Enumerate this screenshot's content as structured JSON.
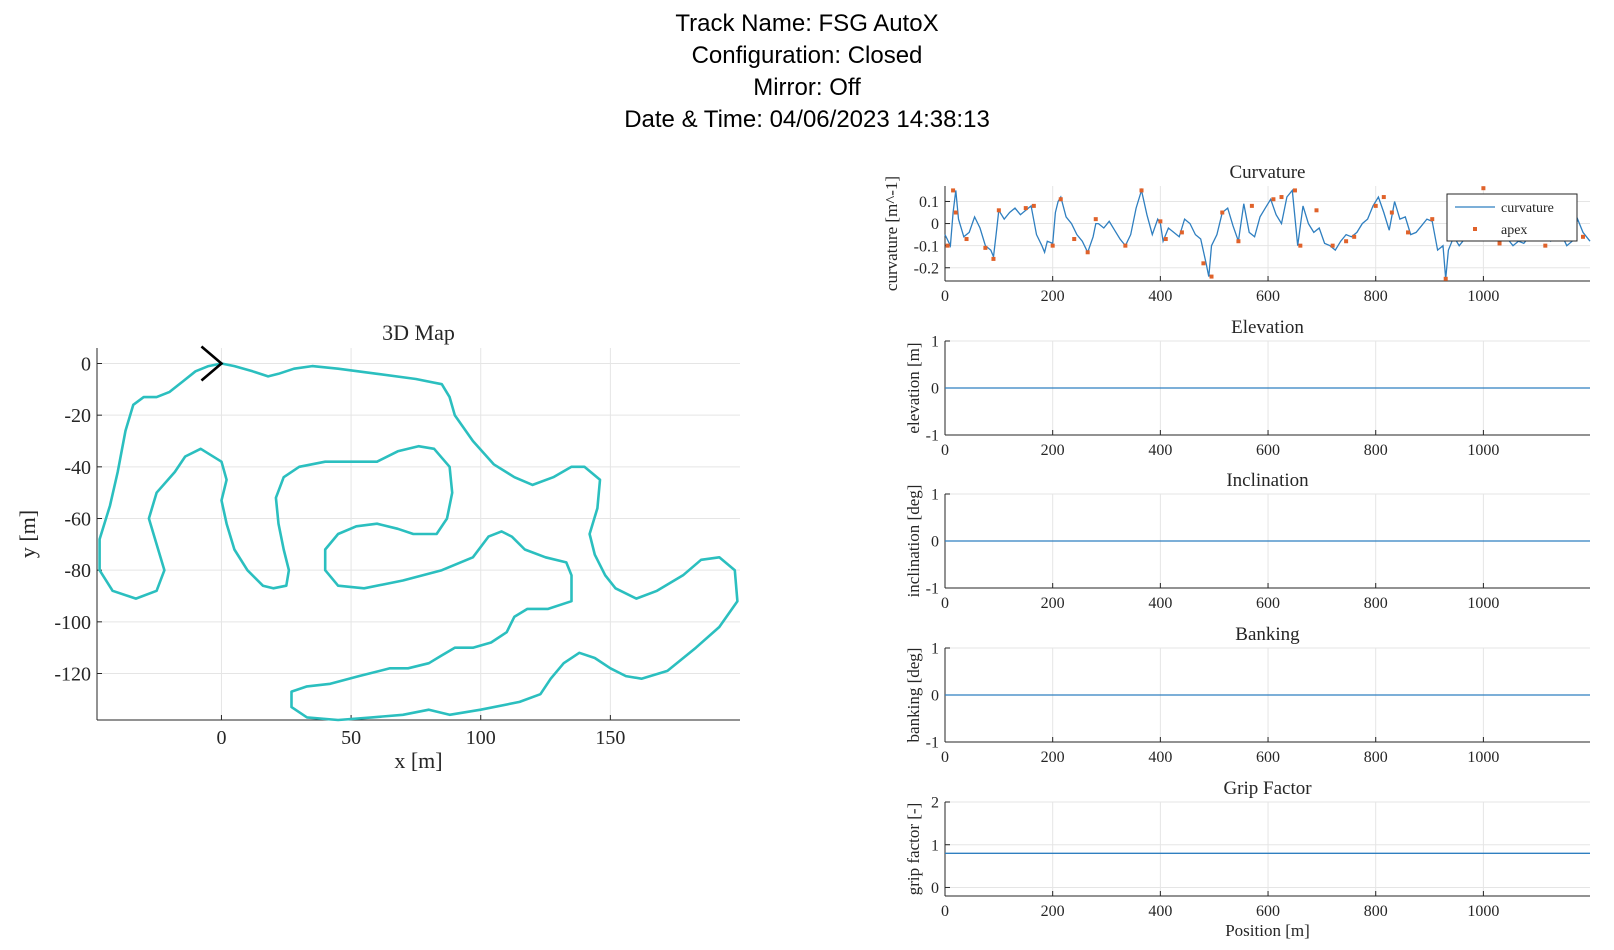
{
  "header": {
    "track_name": "Track Name: FSG AutoX",
    "configuration": "Configuration: Closed",
    "mirror": "Mirror: Off",
    "datetime": "Date & Time: 04/06/2023 14:38:13"
  },
  "colors": {
    "track": "#2bbfbf",
    "series": "#2f7fc0",
    "apex": "#e0622a",
    "start_marker": "#000000"
  },
  "chart_data": [
    {
      "type": "line",
      "title": "3D Map",
      "xlabel": "x [m]",
      "ylabel": "y [m]",
      "xlim": [
        -48,
        200
      ],
      "ylim": [
        -138,
        6
      ],
      "xticks": [
        0,
        50,
        100,
        150
      ],
      "yticks": [
        0,
        -20,
        -40,
        -60,
        -80,
        -100,
        -120
      ],
      "grid": true,
      "track_xy": [
        [
          0,
          0
        ],
        [
          5,
          -1
        ],
        [
          12,
          -3
        ],
        [
          18,
          -5
        ],
        [
          22,
          -4
        ],
        [
          28,
          -2
        ],
        [
          35,
          -1
        ],
        [
          45,
          -2
        ],
        [
          60,
          -4
        ],
        [
          75,
          -6
        ],
        [
          85,
          -8
        ],
        [
          88,
          -13
        ],
        [
          90,
          -20
        ],
        [
          97,
          -30
        ],
        [
          105,
          -39
        ],
        [
          113,
          -44
        ],
        [
          120,
          -47
        ],
        [
          128,
          -44
        ],
        [
          135,
          -40
        ],
        [
          140,
          -40
        ],
        [
          146,
          -45
        ],
        [
          145,
          -56
        ],
        [
          142,
          -66
        ],
        [
          144,
          -74
        ],
        [
          148,
          -82
        ],
        [
          152,
          -87
        ],
        [
          160,
          -91
        ],
        [
          168,
          -88
        ],
        [
          178,
          -82
        ],
        [
          185,
          -76
        ],
        [
          192,
          -75
        ],
        [
          198,
          -80
        ],
        [
          199,
          -92
        ],
        [
          192,
          -102
        ],
        [
          183,
          -110
        ],
        [
          172,
          -119
        ],
        [
          162,
          -122
        ],
        [
          156,
          -121
        ],
        [
          150,
          -118
        ],
        [
          144,
          -114
        ],
        [
          138,
          -112
        ],
        [
          132,
          -116
        ],
        [
          127,
          -122
        ],
        [
          123,
          -128
        ],
        [
          115,
          -131
        ],
        [
          100,
          -134
        ],
        [
          88,
          -136
        ],
        [
          80,
          -134
        ],
        [
          70,
          -136
        ],
        [
          58,
          -137
        ],
        [
          45,
          -138
        ],
        [
          33,
          -137
        ],
        [
          27,
          -133
        ],
        [
          27,
          -127
        ],
        [
          33,
          -125
        ],
        [
          42,
          -124
        ],
        [
          53,
          -121
        ],
        [
          65,
          -118
        ],
        [
          72,
          -118
        ],
        [
          80,
          -116
        ],
        [
          85,
          -113
        ],
        [
          90,
          -110
        ],
        [
          97,
          -110
        ],
        [
          104,
          -108
        ],
        [
          110,
          -104
        ],
        [
          113,
          -98
        ],
        [
          118,
          -95
        ],
        [
          126,
          -95
        ],
        [
          135,
          -92
        ],
        [
          135,
          -82
        ],
        [
          133,
          -77
        ],
        [
          125,
          -75
        ],
        [
          117,
          -72
        ],
        [
          112,
          -67
        ],
        [
          108,
          -65
        ],
        [
          103,
          -67
        ],
        [
          97,
          -75
        ],
        [
          85,
          -80
        ],
        [
          70,
          -84
        ],
        [
          55,
          -87
        ],
        [
          45,
          -86
        ],
        [
          40,
          -80
        ],
        [
          40,
          -72
        ],
        [
          45,
          -66
        ],
        [
          52,
          -63
        ],
        [
          60,
          -62
        ],
        [
          68,
          -64
        ],
        [
          74,
          -66
        ],
        [
          83,
          -66
        ],
        [
          87,
          -60
        ],
        [
          89,
          -50
        ],
        [
          88,
          -40
        ],
        [
          82,
          -33
        ],
        [
          76,
          -32
        ],
        [
          68,
          -34
        ],
        [
          60,
          -38
        ],
        [
          50,
          -38
        ],
        [
          40,
          -38
        ],
        [
          30,
          -40
        ],
        [
          24,
          -44
        ],
        [
          21,
          -52
        ],
        [
          22,
          -62
        ],
        [
          24,
          -72
        ],
        [
          26,
          -80
        ],
        [
          25,
          -86
        ],
        [
          20,
          -87
        ],
        [
          16,
          -86
        ],
        [
          10,
          -80
        ],
        [
          5,
          -72
        ],
        [
          2,
          -62
        ],
        [
          0,
          -53
        ],
        [
          2,
          -45
        ],
        [
          0,
          -38
        ],
        [
          -8,
          -33
        ],
        [
          -14,
          -36
        ],
        [
          -18,
          -42
        ],
        [
          -25,
          -50
        ],
        [
          -28,
          -60
        ],
        [
          -25,
          -70
        ],
        [
          -22,
          -80
        ],
        [
          -25,
          -88
        ],
        [
          -33,
          -91
        ],
        [
          -42,
          -88
        ],
        [
          -47,
          -80
        ],
        [
          -47,
          -68
        ],
        [
          -43,
          -55
        ],
        [
          -40,
          -42
        ],
        [
          -37,
          -26
        ],
        [
          -34,
          -16
        ],
        [
          -30,
          -13
        ],
        [
          -25,
          -13
        ],
        [
          -20,
          -11
        ],
        [
          -15,
          -7
        ],
        [
          -10,
          -3
        ],
        [
          -5,
          -1
        ],
        [
          0,
          0
        ]
      ],
      "start_marker": [
        0,
        0
      ]
    },
    {
      "type": "line",
      "title": "Curvature",
      "ylabel": "curvature [m^-1]",
      "xlim": [
        0,
        1198
      ],
      "ylim": [
        -0.26,
        0.17
      ],
      "xticks": [
        0,
        200,
        400,
        600,
        800,
        1000
      ],
      "yticks": [
        0.1,
        0,
        -0.1,
        -0.2
      ],
      "ytick_labels": [
        "0.1",
        "0",
        "-0.1",
        "-0.2"
      ],
      "legend": [
        "curvature",
        "apex"
      ],
      "legend_location": "top-right",
      "grid": true,
      "series": [
        {
          "name": "curvature",
          "x": [
            0,
            10,
            15,
            20,
            25,
            35,
            45,
            55,
            65,
            75,
            85,
            90,
            95,
            100,
            110,
            120,
            130,
            140,
            150,
            160,
            170,
            180,
            185,
            190,
            200,
            205,
            210,
            215,
            225,
            235,
            245,
            255,
            265,
            275,
            280,
            285,
            295,
            305,
            315,
            325,
            335,
            345,
            355,
            365,
            375,
            385,
            395,
            400,
            405,
            415,
            425,
            435,
            445,
            455,
            465,
            475,
            485,
            490,
            495,
            505,
            515,
            525,
            535,
            545,
            555,
            565,
            575,
            585,
            595,
            605,
            615,
            625,
            635,
            645,
            655,
            665,
            675,
            685,
            695,
            705,
            715,
            725,
            735,
            745,
            755,
            765,
            775,
            785,
            795,
            805,
            815,
            825,
            835,
            845,
            855,
            865,
            875,
            885,
            895,
            905,
            915,
            925,
            930,
            935,
            945,
            955,
            965,
            975,
            985,
            995,
            1005,
            1015,
            1025,
            1035,
            1045,
            1055,
            1065,
            1075,
            1085,
            1095,
            1105,
            1115,
            1125,
            1135,
            1145,
            1155,
            1165,
            1175,
            1185,
            1198
          ],
          "values": [
            -0.05,
            -0.1,
            0.05,
            0.15,
            0.02,
            -0.06,
            -0.04,
            0.03,
            -0.02,
            -0.1,
            -0.12,
            -0.15,
            -0.05,
            0.06,
            0.02,
            0.05,
            0.07,
            0.04,
            0.06,
            0.08,
            -0.05,
            -0.1,
            -0.13,
            -0.08,
            -0.09,
            0.05,
            0.1,
            0.12,
            0.03,
            0.0,
            -0.05,
            -0.08,
            -0.13,
            -0.06,
            0.0,
            0.0,
            -0.02,
            0.01,
            -0.03,
            -0.07,
            -0.1,
            -0.05,
            0.07,
            0.15,
            0.04,
            -0.05,
            0.02,
            0.0,
            -0.08,
            -0.02,
            -0.04,
            -0.06,
            0.02,
            0.0,
            -0.05,
            -0.07,
            -0.18,
            -0.24,
            -0.1,
            -0.05,
            0.05,
            0.07,
            -0.01,
            -0.08,
            0.09,
            -0.04,
            -0.06,
            0.03,
            0.07,
            0.11,
            0.04,
            0.0,
            0.12,
            0.15,
            -0.1,
            0.08,
            0.0,
            -0.04,
            -0.02,
            -0.09,
            -0.1,
            -0.12,
            -0.08,
            -0.05,
            -0.06,
            -0.04,
            0.0,
            0.02,
            0.08,
            0.12,
            0.05,
            -0.03,
            0.1,
            0.02,
            0.03,
            -0.05,
            -0.04,
            -0.01,
            0.02,
            0.01,
            -0.12,
            -0.1,
            -0.25,
            -0.12,
            -0.06,
            -0.1,
            -0.07,
            -0.03,
            -0.05,
            -0.06,
            0.1,
            0.02,
            0.05,
            -0.04,
            -0.07,
            -0.1,
            -0.08,
            -0.09,
            -0.06,
            -0.07,
            0.02,
            -0.06,
            -0.08,
            -0.04,
            -0.05,
            -0.1,
            -0.08,
            0.02,
            -0.04,
            -0.08
          ]
        },
        {
          "name": "apex",
          "x": [
            5,
            15,
            20,
            40,
            75,
            90,
            100,
            150,
            165,
            200,
            215,
            240,
            265,
            280,
            335,
            365,
            400,
            410,
            440,
            480,
            495,
            515,
            545,
            570,
            610,
            625,
            650,
            660,
            690,
            720,
            745,
            760,
            800,
            815,
            830,
            860,
            905,
            930,
            955,
            1000,
            1030,
            1060,
            1090,
            1115,
            1150,
            1185
          ],
          "values": [
            -0.1,
            0.15,
            0.05,
            -0.07,
            -0.11,
            -0.16,
            0.06,
            0.07,
            0.08,
            -0.1,
            0.11,
            -0.07,
            -0.13,
            0.02,
            -0.1,
            0.15,
            0.01,
            -0.07,
            -0.04,
            -0.18,
            -0.24,
            0.05,
            -0.08,
            0.08,
            0.11,
            0.12,
            0.15,
            -0.1,
            0.06,
            -0.1,
            -0.08,
            -0.06,
            0.08,
            0.12,
            0.05,
            -0.04,
            0.02,
            -0.25,
            -0.06,
            0.16,
            -0.09,
            -0.05,
            -0.06,
            -0.1,
            -0.05,
            -0.06
          ]
        }
      ]
    },
    {
      "type": "line",
      "title": "Elevation",
      "ylabel": "elevation [m]",
      "xlim": [
        0,
        1198
      ],
      "ylim": [
        -1,
        1
      ],
      "xticks": [
        0,
        200,
        400,
        600,
        800,
        1000
      ],
      "yticks": [
        1,
        0,
        -1
      ],
      "grid": true,
      "series": [
        {
          "x": [
            0,
            1198
          ],
          "values": [
            0,
            0
          ]
        }
      ]
    },
    {
      "type": "line",
      "title": "Inclination",
      "ylabel": "inclination [deg]",
      "xlim": [
        0,
        1198
      ],
      "ylim": [
        -1,
        1
      ],
      "xticks": [
        0,
        200,
        400,
        600,
        800,
        1000
      ],
      "yticks": [
        1,
        0,
        -1
      ],
      "grid": true,
      "series": [
        {
          "x": [
            0,
            1198
          ],
          "values": [
            0,
            0
          ]
        }
      ]
    },
    {
      "type": "line",
      "title": "Banking",
      "ylabel": "banking [deg]",
      "xlim": [
        0,
        1198
      ],
      "ylim": [
        -1,
        1
      ],
      "xticks": [
        0,
        200,
        400,
        600,
        800,
        1000
      ],
      "yticks": [
        1,
        0,
        -1
      ],
      "grid": true,
      "series": [
        {
          "x": [
            0,
            1198
          ],
          "values": [
            0,
            0
          ]
        }
      ]
    },
    {
      "type": "line",
      "title": "Grip Factor",
      "ylabel": "grip factor [-]",
      "xlabel": "Position [m]",
      "xlim": [
        0,
        1198
      ],
      "ylim": [
        -0.2,
        2
      ],
      "xticks": [
        0,
        200,
        400,
        600,
        800,
        1000
      ],
      "yticks": [
        2,
        1,
        0
      ],
      "grid": true,
      "series": [
        {
          "x": [
            0,
            1198
          ],
          "values": [
            0.8,
            0.8
          ]
        }
      ]
    }
  ]
}
